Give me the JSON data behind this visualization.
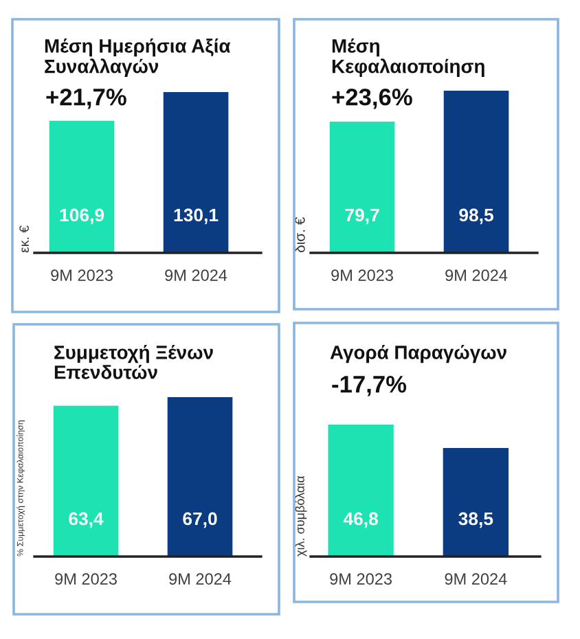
{
  "chart_data": [
    {
      "type": "bar",
      "title": "Μέση Ημερήσια Αξία\nΣυναλλαγών",
      "subtitle": "+21,7%",
      "ylabel": "εκ. €",
      "categories": [
        "9M 2023",
        "9M 2024"
      ],
      "values": [
        106.9,
        130.1
      ],
      "colors": [
        "#1de3b3",
        "#0b3c82"
      ],
      "value_labels": [
        "106,9",
        "130,1"
      ]
    },
    {
      "type": "bar",
      "title": "Μέση\nΚεφαλαιοποίηση",
      "subtitle": "+23,6%",
      "ylabel": "δισ. €",
      "categories": [
        "9M 2023",
        "9M 2024"
      ],
      "values": [
        79.7,
        98.5
      ],
      "colors": [
        "#1de3b3",
        "#0b3c82"
      ],
      "value_labels": [
        "79,7",
        "98,5"
      ]
    },
    {
      "type": "bar",
      "title": "Συμμετοχή Ξένων\nΕπενδυτών",
      "ylabel": "% Συμμετοχή στην Κεφαλαιοποίηση",
      "categories": [
        "9M 2023",
        "9M 2024"
      ],
      "values": [
        63.4,
        67.0
      ],
      "colors": [
        "#1de3b3",
        "#0b3c82"
      ],
      "value_labels": [
        "63,4",
        "67,0"
      ]
    },
    {
      "type": "bar",
      "title": "Αγορά Παραγώγων",
      "subtitle": "-17,7%",
      "ylabel": "χιλ. συμβόλαια",
      "categories": [
        "9M 2023",
        "9M 2024"
      ],
      "values": [
        46.8,
        38.5
      ],
      "colors": [
        "#1de3b3",
        "#0b3c82"
      ],
      "value_labels": [
        "46,8",
        "38,5"
      ]
    }
  ]
}
